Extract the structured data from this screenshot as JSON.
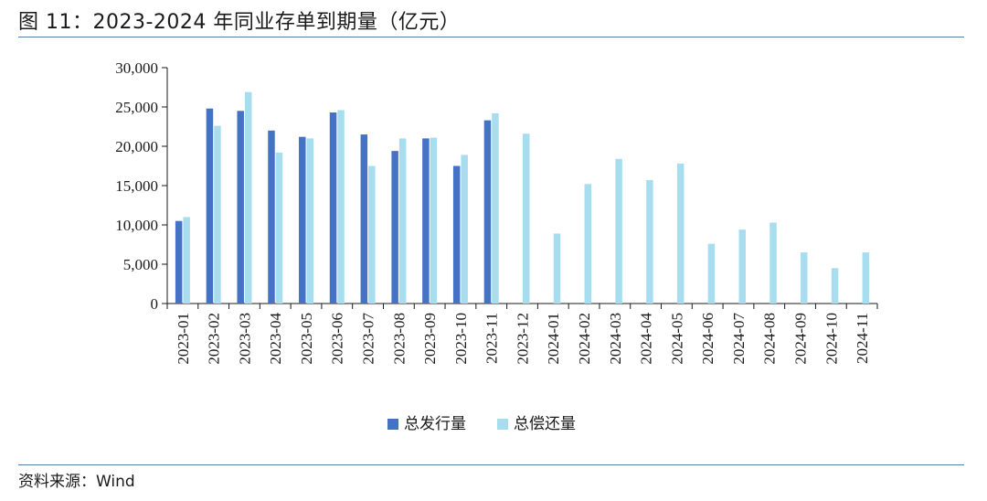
{
  "header": {
    "title": "图 11：2023-2024 年同业存单到期量（亿元）"
  },
  "footer": {
    "source": "资料来源：Wind"
  },
  "chart_data": {
    "type": "bar",
    "title": "图 11：2023-2024 年同业存单到期量（亿元）",
    "xlabel": "",
    "ylabel": "",
    "ylim": [
      0,
      30000
    ],
    "yticks": [
      0,
      5000,
      10000,
      15000,
      20000,
      25000,
      30000
    ],
    "ytick_labels": [
      "0",
      "5,000",
      "10,000",
      "15,000",
      "20,000",
      "25,000",
      "30,000"
    ],
    "grid": false,
    "legend_position": "bottom",
    "categories": [
      "2023-01",
      "2023-02",
      "2023-03",
      "2023-04",
      "2023-05",
      "2023-06",
      "2023-07",
      "2023-08",
      "2023-09",
      "2023-10",
      "2023-11",
      "2023-12",
      "2024-01",
      "2024-02",
      "2024-03",
      "2024-04",
      "2024-05",
      "2024-06",
      "2024-07",
      "2024-08",
      "2024-09",
      "2024-10",
      "2024-11"
    ],
    "series": [
      {
        "name": "总发行量",
        "color": "#4472c4",
        "values": [
          10500,
          24800,
          24500,
          22000,
          21200,
          24300,
          21500,
          19400,
          21000,
          17500,
          23300,
          null,
          null,
          null,
          null,
          null,
          null,
          null,
          null,
          null,
          null,
          null,
          null
        ]
      },
      {
        "name": "总偿还量",
        "color": "#a8ddef",
        "values": [
          11000,
          22600,
          26900,
          19200,
          21000,
          24600,
          17500,
          21000,
          21100,
          18900,
          24200,
          21600,
          8900,
          15200,
          18400,
          15700,
          17800,
          7600,
          9400,
          10300,
          6500,
          4500,
          6500
        ]
      }
    ]
  }
}
